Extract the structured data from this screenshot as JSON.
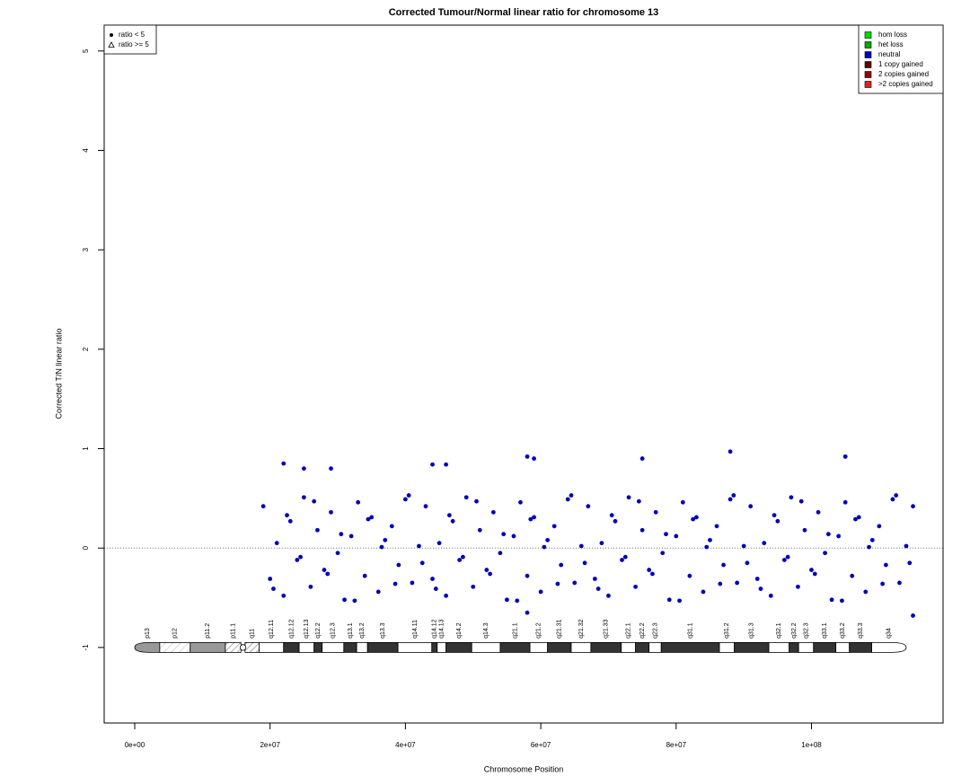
{
  "chart_data": {
    "type": "scatter",
    "title": "Corrected Tumour/Normal linear ratio for chromosome  13",
    "x_label": "Chromosome Position",
    "y_label": "Corrected T/N linear ratio",
    "xlim": [
      -4510000,
      119440000
    ],
    "ylim": [
      -1.76,
      5.26
    ],
    "xticks": [
      {
        "value": 0,
        "label": "0e+00"
      },
      {
        "value": 20000000,
        "label": "2e+07"
      },
      {
        "value": 40000000,
        "label": "4e+07"
      },
      {
        "value": 60000000,
        "label": "6e+07"
      },
      {
        "value": 80000000,
        "label": "8e+07"
      },
      {
        "value": 100000000,
        "label": "1e+08"
      }
    ],
    "yticks": [
      -1,
      0,
      1,
      2,
      3,
      4,
      5
    ],
    "hline": 0,
    "shape_legend": [
      {
        "name": "ratio < 5",
        "shape": "circle"
      },
      {
        "name": "ratio >= 5",
        "shape": "triangle"
      }
    ],
    "color_legend": [
      {
        "name": "hom loss",
        "color": "#00dd00"
      },
      {
        "name": "het loss",
        "color": "#00aa00"
      },
      {
        "name": "neutral",
        "color": "#0000bb"
      },
      {
        "name": "1 copy gained",
        "color": "#660000"
      },
      {
        "name": "2 copies gained",
        "color": "#990000"
      },
      {
        "name": ">2 copies gained",
        "color": "#dd2222"
      }
    ],
    "series": [
      {
        "color": "#0000bb",
        "x": [
          19000000.0,
          20000000.0,
          21000000.0,
          22000000.0,
          23000000.0,
          24000000.0,
          25000000.0,
          26000000.0,
          27000000.0,
          28000000.0,
          29000000.0,
          30000000.0,
          31000000.0,
          32000000.0,
          33000000.0,
          34000000.0,
          35000000.0,
          36000000.0,
          37000000.0,
          38000000.0,
          39000000.0,
          40000000.0,
          41000000.0,
          42000000.0,
          43000000.0,
          44000000.0,
          45000000.0,
          46000000.0,
          47000000.0,
          48000000.0,
          49000000.0,
          50000000.0,
          51000000.0,
          52000000.0,
          53000000.0,
          54000000.0,
          55000000.0,
          56000000.0,
          57000000.0,
          58000000.0,
          59000000.0,
          60000000.0,
          61000000.0,
          62000000.0,
          63000000.0,
          64000000.0,
          65000000.0,
          66000000.0,
          67000000.0,
          68000000.0,
          69000000.0,
          70000000.0,
          71000000.0,
          72000000.0,
          73000000.0,
          74000000.0,
          75000000.0,
          76000000.0,
          77000000.0,
          78000000.0,
          79000000.0,
          80000000.0,
          81000000.0,
          82000000.0,
          83000000.0,
          84000000.0,
          85000000.0,
          86000000.0,
          87000000.0,
          88000000.0,
          89000000.0,
          90000000.0,
          91000000.0,
          92000000.0,
          93000000.0,
          94000000.0,
          95000000.0,
          96000000.0,
          97000000.0,
          98000000.0,
          99000000.0,
          100000000.0,
          101000000.0,
          102000000.0,
          103000000.0,
          104000000.0,
          105000000.0,
          106000000.0,
          107000000.0,
          108000000.0,
          109000000.0,
          110000000.0,
          111000000.0,
          112000000.0,
          113000000.0,
          114000000.0,
          115000000.0,
          20500000.0,
          22500000.0,
          24500000.0,
          26500000.0,
          28500000.0,
          30500000.0,
          32500000.0,
          34500000.0,
          36500000.0,
          38500000.0,
          40500000.0,
          42500000.0,
          44500000.0,
          46500000.0,
          48500000.0,
          50500000.0,
          52500000.0,
          54500000.0,
          56500000.0,
          58500000.0,
          60500000.0,
          62500000.0,
          64500000.0,
          66500000.0,
          68500000.0,
          70500000.0,
          72500000.0,
          74500000.0,
          76500000.0,
          78500000.0,
          80500000.0,
          82500000.0,
          84500000.0,
          86500000.0,
          88500000.0,
          90500000.0,
          92500000.0,
          94500000.0,
          96500000.0,
          98500000.0,
          100500000.0,
          102500000.0,
          104500000.0,
          106500000.0,
          108500000.0,
          110500000.0,
          112500000.0,
          114500000.0,
          22000000.0,
          25000000.0,
          29000000.0,
          44000000.0,
          46000000.0,
          58000000.0,
          59000000.0,
          75000000.0,
          88000000.0,
          105000000.0,
          115000000.0,
          58000000.0
        ],
        "values": [
          0.42,
          -0.31,
          0.05,
          -0.48,
          0.27,
          -0.12,
          0.51,
          -0.39,
          0.18,
          -0.22,
          0.36,
          -0.05,
          -0.52,
          0.12,
          0.46,
          -0.28,
          0.31,
          -0.44,
          0.08,
          0.22,
          -0.17,
          0.49,
          -0.35,
          0.02,
          0.42,
          -0.31,
          0.05,
          -0.48,
          0.27,
          -0.12,
          0.51,
          -0.39,
          0.18,
          -0.22,
          0.36,
          -0.05,
          -0.52,
          0.12,
          0.46,
          -0.28,
          0.31,
          -0.44,
          0.08,
          0.22,
          -0.17,
          0.49,
          -0.35,
          0.02,
          0.42,
          -0.31,
          0.05,
          -0.48,
          0.27,
          -0.12,
          0.51,
          -0.39,
          0.18,
          -0.22,
          0.36,
          -0.05,
          -0.52,
          0.12,
          0.46,
          -0.28,
          0.31,
          -0.44,
          0.08,
          0.22,
          -0.17,
          0.49,
          -0.35,
          0.02,
          0.42,
          -0.31,
          0.05,
          -0.48,
          0.27,
          -0.12,
          0.51,
          -0.39,
          0.18,
          -0.22,
          0.36,
          -0.05,
          -0.52,
          0.12,
          0.46,
          -0.28,
          0.31,
          -0.44,
          0.08,
          0.22,
          -0.17,
          0.49,
          -0.35,
          0.02,
          0.42,
          -0.41,
          0.33,
          -0.09,
          0.47,
          -0.26,
          0.14,
          -0.53,
          0.29,
          0.01,
          -0.36,
          0.53,
          -0.15,
          -0.41,
          0.33,
          -0.09,
          0.47,
          -0.26,
          0.14,
          -0.53,
          0.29,
          0.01,
          -0.36,
          0.53,
          -0.15,
          -0.41,
          0.33,
          -0.09,
          0.47,
          -0.26,
          0.14,
          -0.53,
          0.29,
          0.01,
          -0.36,
          0.53,
          -0.15,
          -0.41,
          0.33,
          -0.09,
          0.47,
          -0.26,
          0.14,
          -0.53,
          0.29,
          0.01,
          -0.36,
          0.53,
          -0.15,
          0.85,
          0.8,
          0.8,
          0.84,
          0.84,
          0.92,
          0.9,
          0.9,
          0.97,
          0.92,
          -0.68,
          -0.65
        ]
      }
    ],
    "bands": [
      {
        "name": "p13",
        "start": 0,
        "end": 3700000,
        "stain": "gvar"
      },
      {
        "name": "p12",
        "start": 3700000,
        "end": 8200000,
        "stain": "stalk"
      },
      {
        "name": "p11.2",
        "start": 8200000,
        "end": 13400000,
        "stain": "gpos50"
      },
      {
        "name": "p11.1",
        "start": 13400000,
        "end": 15700000,
        "stain": "acen"
      },
      {
        "name": "q11",
        "start": 16300000,
        "end": 18400000,
        "stain": "acen"
      },
      {
        "name": "q12.11",
        "start": 18400000,
        "end": 22000000,
        "stain": "gneg"
      },
      {
        "name": "q12.12",
        "start": 22000000,
        "end": 24300000,
        "stain": "gpos100"
      },
      {
        "name": "q12.13",
        "start": 24300000,
        "end": 26500000,
        "stain": "gneg"
      },
      {
        "name": "q12.2",
        "start": 26500000,
        "end": 27700000,
        "stain": "gpos100"
      },
      {
        "name": "q12.3",
        "start": 27700000,
        "end": 30900000,
        "stain": "gneg"
      },
      {
        "name": "q13.1",
        "start": 30900000,
        "end": 32800000,
        "stain": "gpos100"
      },
      {
        "name": "q13.2",
        "start": 32800000,
        "end": 34400000,
        "stain": "gneg"
      },
      {
        "name": "q13.3",
        "start": 34400000,
        "end": 38900000,
        "stain": "gpos100"
      },
      {
        "name": "q14.11",
        "start": 38900000,
        "end": 43900000,
        "stain": "gneg"
      },
      {
        "name": "q14.12",
        "start": 43900000,
        "end": 44700000,
        "stain": "gpos100"
      },
      {
        "name": "q14.13",
        "start": 44700000,
        "end": 46000000,
        "stain": "gneg"
      },
      {
        "name": "q14.2",
        "start": 46000000,
        "end": 49800000,
        "stain": "gpos100"
      },
      {
        "name": "q14.3",
        "start": 49800000,
        "end": 54000000,
        "stain": "gneg"
      },
      {
        "name": "q21.1",
        "start": 54000000,
        "end": 58400000,
        "stain": "gpos100"
      },
      {
        "name": "q21.2",
        "start": 58400000,
        "end": 61000000,
        "stain": "gneg"
      },
      {
        "name": "q21.31",
        "start": 61000000,
        "end": 64500000,
        "stain": "gpos100"
      },
      {
        "name": "q21.32",
        "start": 64500000,
        "end": 67400000,
        "stain": "gneg"
      },
      {
        "name": "q21.33",
        "start": 67400000,
        "end": 71900000,
        "stain": "gpos100"
      },
      {
        "name": "q22.1",
        "start": 71900000,
        "end": 74000000,
        "stain": "gneg"
      },
      {
        "name": "q22.2",
        "start": 74000000,
        "end": 76000000,
        "stain": "gpos100"
      },
      {
        "name": "q22.3",
        "start": 76000000,
        "end": 77800000,
        "stain": "gneg"
      },
      {
        "name": "q31.1",
        "start": 77800000,
        "end": 86400000,
        "stain": "gpos100"
      },
      {
        "name": "q31.2",
        "start": 86400000,
        "end": 88600000,
        "stain": "gneg"
      },
      {
        "name": "q31.3",
        "start": 88600000,
        "end": 93700000,
        "stain": "gpos100"
      },
      {
        "name": "q32.1",
        "start": 93700000,
        "end": 96700000,
        "stain": "gneg"
      },
      {
        "name": "q32.2",
        "start": 96700000,
        "end": 98100000,
        "stain": "gpos100"
      },
      {
        "name": "q32.3",
        "start": 98100000,
        "end": 100300000,
        "stain": "gneg"
      },
      {
        "name": "q33.1",
        "start": 100300000,
        "end": 103600000,
        "stain": "gpos100"
      },
      {
        "name": "q33.2",
        "start": 103600000,
        "end": 105600000,
        "stain": "gneg"
      },
      {
        "name": "q33.3",
        "start": 105600000,
        "end": 108900000,
        "stain": "gpos100"
      },
      {
        "name": "q34",
        "start": 108900000,
        "end": 114000000,
        "stain": "gneg"
      }
    ],
    "ideogram_y": -1
  }
}
